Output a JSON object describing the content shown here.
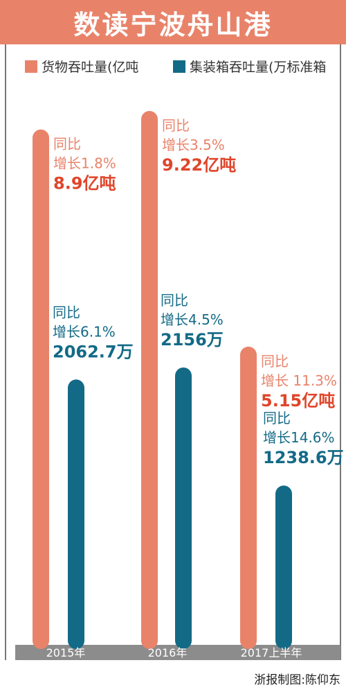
{
  "title": "数读宁波舟山港",
  "credit": "浙报制图:陈仰东",
  "colors": {
    "title_bg": "#e8836a",
    "cargo": "#e8836a",
    "container": "#136a87",
    "axis_band": "#8c8c8c",
    "value_red": "#e0452a",
    "label_orange": "#e8836a",
    "container_text": "#136a87"
  },
  "chart_data": {
    "type": "bar",
    "categories": [
      "2015年",
      "2016年",
      "2017上半年"
    ],
    "series": [
      {
        "name": "货物吞吐量(亿吨",
        "values": [
          8.9,
          9.22,
          5.15
        ],
        "growth_label": [
          "同比",
          "同比",
          "同比"
        ],
        "growth_text": [
          "增长1.8%",
          "增长3.5%",
          "增长 11.3%"
        ],
        "value_text": [
          "8.9亿吨",
          "9.22亿吨",
          "5.15亿吨"
        ]
      },
      {
        "name": "集装箱吞吐量(万标准箱",
        "values": [
          2062.7,
          2156,
          1238.6
        ],
        "growth_label": [
          "同比",
          "同比",
          "同比"
        ],
        "growth_text": [
          "增长6.1%",
          "增长4.5%",
          "增长14.6%"
        ],
        "value_text": [
          "2062.7万",
          "2156万",
          "1238.6万"
        ]
      }
    ],
    "legend_position": "top-left",
    "grid": false
  }
}
